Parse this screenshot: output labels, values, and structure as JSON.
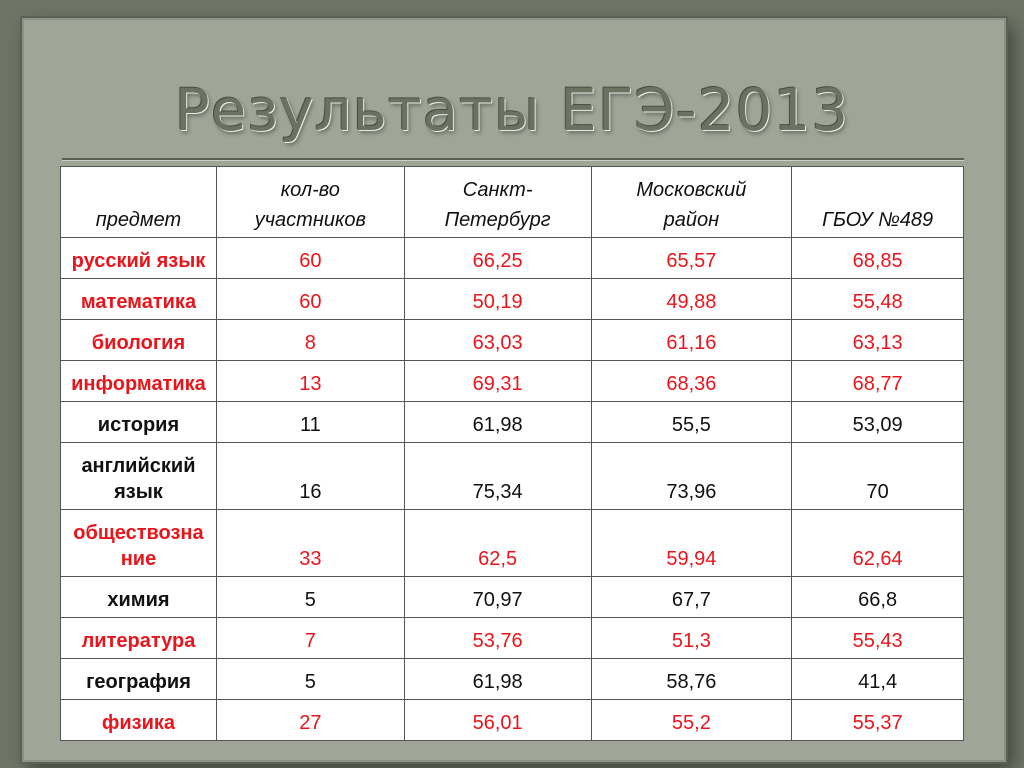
{
  "slide": {
    "title": "Результаты ЕГЭ-2013"
  },
  "table": {
    "headers": [
      "предмет",
      "кол-во участников",
      "Санкт-Петербург",
      "Московский район",
      "ГБОУ №489"
    ],
    "header_lines": [
      [
        "предмет"
      ],
      [
        "кол-во",
        "участников"
      ],
      [
        "Санкт-",
        "Петербург"
      ],
      [
        "Московский",
        "район"
      ],
      [
        "ГБОУ №489"
      ]
    ],
    "rows": [
      {
        "subject": "русский язык",
        "participants": "60",
        "spb": "66,25",
        "district": "65,57",
        "school": "68,85",
        "highlight": true
      },
      {
        "subject": "математика",
        "participants": "60",
        "spb": "50,19",
        "district": "49,88",
        "school": "55,48",
        "highlight": true
      },
      {
        "subject": "биология",
        "participants": "8",
        "spb": "63,03",
        "district": "61,16",
        "school": "63,13",
        "highlight": true
      },
      {
        "subject": "информатика",
        "participants": "13",
        "spb": "69,31",
        "district": "68,36",
        "school": "68,77",
        "highlight": true
      },
      {
        "subject": "история",
        "participants": "11",
        "spb": "61,98",
        "district": "55,5",
        "school": "53,09",
        "highlight": false
      },
      {
        "subject": "английский язык",
        "subject_lines": [
          "английский",
          "язык"
        ],
        "participants": "16",
        "spb": "75,34",
        "district": "73,96",
        "school": "70",
        "highlight": false
      },
      {
        "subject": "обществознание",
        "subject_lines": [
          "обществозна",
          "ние"
        ],
        "participants": "33",
        "spb": "62,5",
        "district": "59,94",
        "school": "62,64",
        "highlight": true
      },
      {
        "subject": "химия",
        "participants": "5",
        "spb": "70,97",
        "district": "67,7",
        "school": "66,8",
        "highlight": false
      },
      {
        "subject": "литература",
        "participants": "7",
        "spb": "53,76",
        "district": "51,3",
        "school": "55,43",
        "highlight": true
      },
      {
        "subject": "география",
        "participants": "5",
        "spb": "61,98",
        "district": "58,76",
        "school": "41,4",
        "highlight": false
      },
      {
        "subject": "физика",
        "participants": "27",
        "spb": "56,01",
        "district": "55,2",
        "school": "55,37",
        "highlight": true
      }
    ]
  },
  "colors": {
    "highlight_text": "#e8161c",
    "normal_text": "#111111",
    "background": "#6e7566",
    "panel": "#a0a697"
  }
}
